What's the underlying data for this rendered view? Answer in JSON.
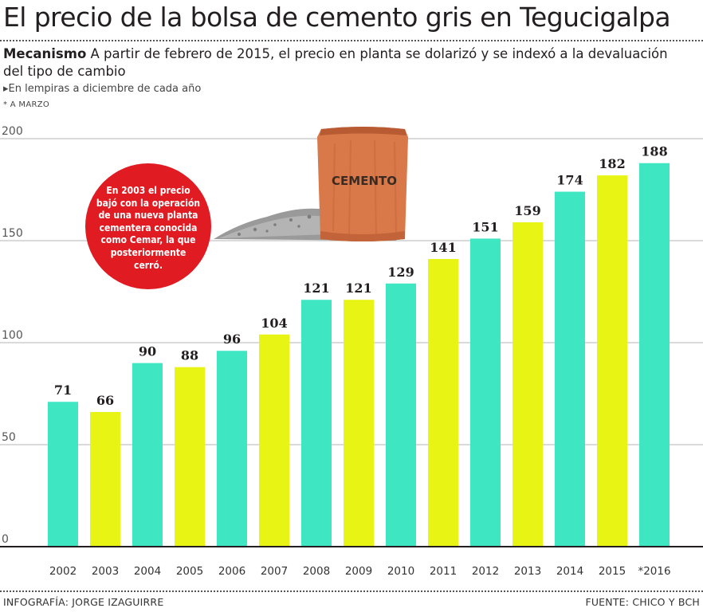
{
  "title": "El precio de la bolsa de cemento gris en Tegucigalpa",
  "subtitle": {
    "lead": "Mecanismo",
    "text": " A partir de febrero de 2015, el precio en planta se dolarizó y se indexó a la devaluación del tipo de cambio"
  },
  "unit_note": "▸En lempiras a diciembre de cada año",
  "footnote": "* A MARZO",
  "callout": "En 2003 el precio bajó con la operación de una nueva planta cementera conocida como Cemar, la que posteriormente cerró.",
  "bag_label": "CEMENTO",
  "credits": {
    "left": "INFOGRAFÍA: JORGE IZAGUIRRE",
    "right": "FUENTE: CHICO Y BCH"
  },
  "colors": {
    "teal": "#3ee6c1",
    "yellow": "#e8f514",
    "callout": "#e11b22",
    "bag": "#d9794a"
  },
  "chart_data": {
    "type": "bar",
    "categories": [
      "2002",
      "2003",
      "2004",
      "2005",
      "2006",
      "2007",
      "2008",
      "2009",
      "2010",
      "2011",
      "2012",
      "2013",
      "2014",
      "2015",
      "*2016"
    ],
    "values": [
      71,
      66,
      90,
      88,
      96,
      104,
      121,
      121,
      129,
      141,
      151,
      159,
      174,
      182,
      188
    ],
    "bar_colors": [
      "teal",
      "yellow",
      "teal",
      "yellow",
      "teal",
      "yellow",
      "teal",
      "yellow",
      "teal",
      "yellow",
      "teal",
      "yellow",
      "teal",
      "yellow",
      "teal"
    ],
    "yticks": [
      0,
      50,
      100,
      150,
      200
    ],
    "ylim": [
      0,
      200
    ],
    "grid": true,
    "data_labels": true
  }
}
